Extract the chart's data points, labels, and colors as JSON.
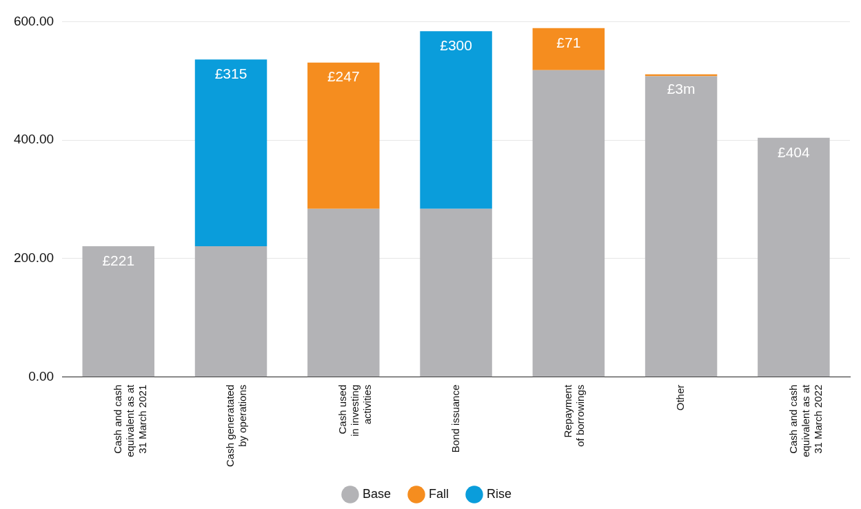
{
  "chart_data": {
    "type": "bar",
    "stacked": true,
    "categories": [
      "Cash and cash\nequivalent as at\n31 March 2021",
      "Cash generatated\nby operations",
      "Cash used\nin investing\nactivities",
      "Bond issuance",
      "Repayment\nof borrowings",
      "Other",
      "Cash and cash\nequivalent as at\n31 March 2022"
    ],
    "series": [
      {
        "name": "Base",
        "color": "#b3b3b6",
        "values": [
          221,
          221,
          284,
          284,
          518,
          508,
          404
        ],
        "value_labels": [
          "£221",
          null,
          null,
          null,
          null,
          null,
          "£404"
        ]
      },
      {
        "name": "Fall",
        "color": "#f58d1f",
        "values": [
          null,
          null,
          247,
          null,
          71,
          3,
          null
        ],
        "value_labels": [
          null,
          null,
          "£247",
          null,
          "£71",
          "£3m",
          null
        ]
      },
      {
        "name": "Rise",
        "color": "#0a9ddb",
        "values": [
          null,
          315,
          null,
          300,
          null,
          null,
          null
        ],
        "value_labels": [
          null,
          "£315",
          null,
          "£300",
          null,
          null,
          null
        ]
      }
    ],
    "ylim": [
      0,
      600
    ],
    "yticks": [
      {
        "value": 0,
        "label": "0.00"
      },
      {
        "value": 200,
        "label": "200.00"
      },
      {
        "value": 400,
        "label": "400.00"
      },
      {
        "value": 600,
        "label": "600.00"
      }
    ],
    "grid": "y",
    "legend": "bottom",
    "marker": "circle"
  }
}
